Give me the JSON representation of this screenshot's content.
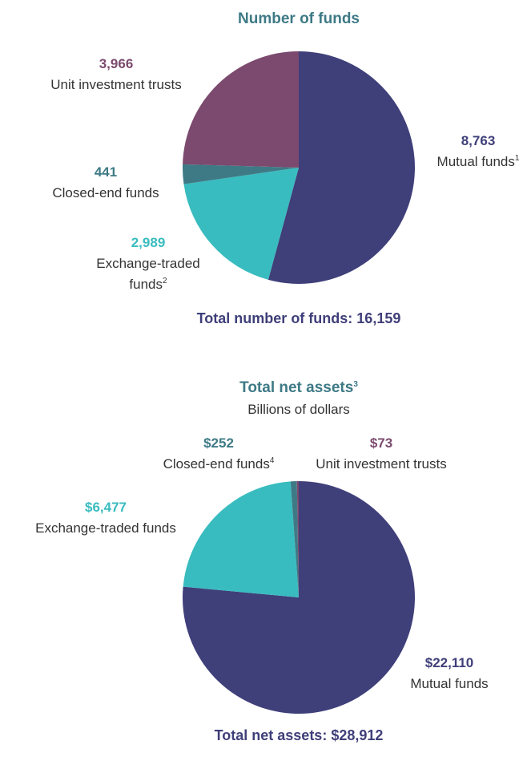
{
  "chart_data": [
    {
      "type": "pie",
      "title": "Number of funds",
      "categories": [
        "Mutual funds",
        "Exchange-traded funds",
        "Closed-end funds",
        "Unit investment trusts"
      ],
      "category_notes": [
        "1",
        "2",
        null,
        null
      ],
      "values": [
        8763,
        2989,
        441,
        3966
      ],
      "value_labels": [
        "8,763",
        "2,989",
        "441",
        "3,966"
      ],
      "colors": [
        "#3f3f7a",
        "#39bcbf",
        "#3e7a86",
        "#7b4a6e"
      ],
      "total": "Total number of funds: 16,159"
    },
    {
      "type": "pie",
      "title": "Total net assets",
      "title_note": "3",
      "subtitle": "Billions of dollars",
      "categories": [
        "Mutual funds",
        "Exchange-traded funds",
        "Closed-end funds",
        "Unit investment trusts"
      ],
      "category_notes": [
        null,
        null,
        "4",
        null
      ],
      "values": [
        22110,
        6477,
        252,
        73
      ],
      "value_labels": [
        "$22,110",
        "$6,477",
        "$252",
        "$73"
      ],
      "colors": [
        "#3f3f7a",
        "#39bcbf",
        "#3e7a86",
        "#7b4a6e"
      ],
      "total": "Total net assets: $28,912"
    }
  ]
}
